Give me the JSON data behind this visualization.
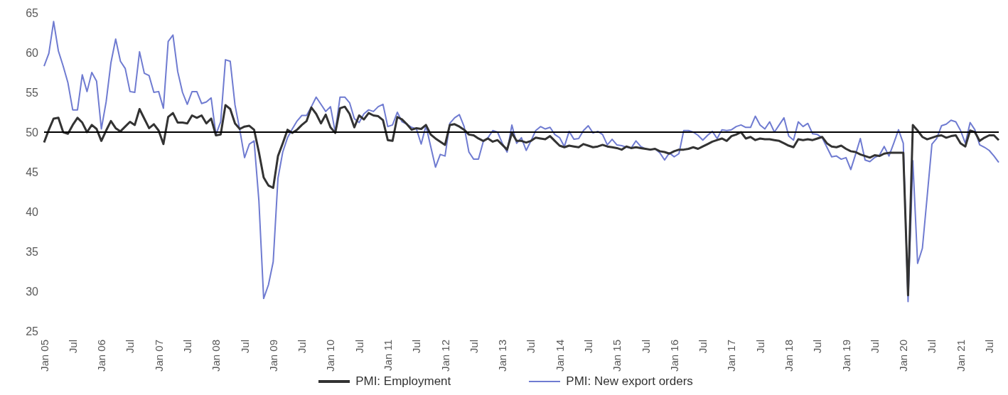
{
  "chart_data": {
    "type": "line",
    "categories": [
      "Jan 05",
      null,
      null,
      null,
      null,
      null,
      "Jul",
      null,
      null,
      null,
      null,
      null,
      "Jan 06",
      null,
      null,
      null,
      null,
      null,
      "Jul",
      null,
      null,
      null,
      null,
      null,
      "Jan 07",
      null,
      null,
      null,
      null,
      null,
      "Jul",
      null,
      null,
      null,
      null,
      null,
      "Jan 08",
      null,
      null,
      null,
      null,
      null,
      "Jul",
      null,
      null,
      null,
      null,
      null,
      "Jan 09",
      null,
      null,
      null,
      null,
      null,
      "Jul",
      null,
      null,
      null,
      null,
      null,
      "Jan 10",
      null,
      null,
      null,
      null,
      null,
      "Jul",
      null,
      null,
      null,
      null,
      null,
      "Jan 11",
      null,
      null,
      null,
      null,
      null,
      "Jul",
      null,
      null,
      null,
      null,
      null,
      "Jan 12",
      null,
      null,
      null,
      null,
      null,
      "Jul",
      null,
      null,
      null,
      null,
      null,
      "Jan 13",
      null,
      null,
      null,
      null,
      null,
      "Jul",
      null,
      null,
      null,
      null,
      null,
      "Jan 14",
      null,
      null,
      null,
      null,
      null,
      "Jul",
      null,
      null,
      null,
      null,
      null,
      "Jan 15",
      null,
      null,
      null,
      null,
      null,
      "Jul",
      null,
      null,
      null,
      null,
      null,
      "Jan 16",
      null,
      null,
      null,
      null,
      null,
      "Jul",
      null,
      null,
      null,
      null,
      null,
      "Jan 17",
      null,
      null,
      null,
      null,
      null,
      "Jul",
      null,
      null,
      null,
      null,
      null,
      "Jan 18",
      null,
      null,
      null,
      null,
      null,
      "Jul",
      null,
      null,
      null,
      null,
      null,
      "Jan 19",
      null,
      null,
      null,
      null,
      null,
      "Jul",
      null,
      null,
      null,
      null,
      null,
      "Jan 20",
      null,
      null,
      null,
      null,
      null,
      "Jul",
      null,
      null,
      null,
      null,
      null,
      "Jan 21",
      null,
      null,
      null,
      null,
      null,
      "Jul",
      null,
      null
    ],
    "series": [
      {
        "name": "PMI: Employment",
        "color": "#333333",
        "values": [
          48.7,
          50.3,
          51.7,
          51.8,
          50.0,
          49.8,
          50.9,
          51.8,
          51.2,
          50.0,
          50.9,
          50.4,
          48.9,
          50.2,
          51.4,
          50.5,
          50.1,
          50.7,
          51.3,
          50.9,
          52.9,
          51.7,
          50.5,
          51.0,
          50.2,
          48.5,
          51.9,
          52.4,
          51.2,
          51.2,
          51.1,
          52.1,
          51.8,
          52.1,
          51.1,
          51.7,
          49.6,
          49.7,
          53.4,
          52.9,
          51.1,
          50.4,
          50.7,
          50.8,
          50.3,
          47.5,
          44.3,
          43.3,
          43.0,
          47.0,
          48.6,
          50.3,
          49.9,
          50.3,
          50.9,
          51.4,
          53.1,
          52.3,
          51.1,
          52.2,
          50.6,
          49.9,
          53.0,
          53.2,
          52.3,
          50.6,
          52.1,
          51.6,
          52.4,
          52.1,
          52.0,
          51.5,
          49.0,
          48.9,
          51.9,
          51.6,
          51.0,
          50.3,
          50.5,
          50.4,
          50.9,
          49.7,
          49.2,
          48.8,
          48.4,
          50.9,
          51.0,
          50.7,
          50.3,
          49.7,
          49.6,
          49.2,
          48.9,
          49.2,
          48.8,
          49.0,
          48.4,
          47.8,
          49.9,
          48.9,
          48.9,
          48.7,
          48.9,
          49.3,
          49.2,
          49.1,
          49.5,
          48.9,
          48.3,
          48.1,
          48.3,
          48.2,
          48.1,
          48.5,
          48.3,
          48.1,
          48.2,
          48.4,
          48.2,
          48.1,
          48.0,
          47.8,
          48.2,
          48.0,
          48.1,
          48.0,
          47.9,
          47.8,
          47.9,
          47.6,
          47.5,
          47.3,
          47.6,
          47.8,
          47.8,
          47.9,
          48.1,
          47.9,
          48.2,
          48.5,
          48.8,
          49.0,
          49.2,
          48.9,
          49.5,
          49.7,
          50.0,
          49.2,
          49.4,
          49.0,
          49.2,
          49.1,
          49.1,
          49.0,
          48.9,
          48.6,
          48.3,
          48.1,
          49.1,
          49.0,
          49.1,
          49.0,
          49.2,
          49.4,
          48.6,
          48.2,
          48.1,
          48.3,
          47.9,
          47.6,
          47.5,
          47.2,
          47.0,
          46.8,
          47.1,
          47.0,
          47.3,
          47.4,
          47.4,
          47.4,
          47.4,
          29.5,
          50.9,
          50.2,
          49.4,
          49.1,
          49.3,
          49.5,
          49.6,
          49.3,
          49.5,
          49.6,
          48.6,
          48.2,
          50.2,
          50.0,
          48.9,
          49.3,
          49.6,
          49.6,
          49.0
        ]
      },
      {
        "name": "PMI: New export orders",
        "color": "#6f7bd1",
        "values": [
          58.3,
          59.9,
          63.9,
          60.2,
          58.3,
          56.2,
          52.8,
          52.8,
          57.2,
          55.1,
          57.5,
          56.4,
          50.4,
          53.8,
          58.7,
          61.7,
          58.9,
          58.0,
          55.1,
          55.0,
          60.1,
          57.4,
          57.1,
          55.0,
          55.1,
          53.0,
          61.4,
          62.2,
          57.6,
          55.0,
          53.5,
          55.1,
          55.1,
          53.6,
          53.8,
          54.3,
          49.7,
          51.3,
          59.1,
          58.9,
          53.4,
          50.3,
          46.8,
          48.5,
          48.9,
          41.4,
          29.1,
          30.8,
          33.7,
          44.2,
          47.5,
          49.3,
          50.4,
          51.4,
          52.1,
          52.1,
          53.2,
          54.4,
          53.5,
          52.6,
          53.2,
          50.0,
          54.4,
          54.4,
          53.7,
          51.7,
          51.2,
          52.3,
          52.8,
          52.6,
          53.2,
          53.5,
          50.7,
          50.9,
          52.5,
          51.3,
          51.0,
          50.6,
          50.4,
          48.5,
          50.8,
          48.2,
          45.6,
          47.2,
          47.0,
          51.1,
          51.8,
          52.2,
          50.7,
          47.5,
          46.6,
          46.6,
          48.8,
          49.3,
          50.2,
          50.0,
          48.6,
          47.5,
          50.9,
          48.6,
          49.3,
          47.7,
          48.9,
          50.2,
          50.7,
          50.4,
          50.6,
          49.7,
          49.3,
          48.2,
          50.1,
          49.1,
          49.2,
          50.2,
          50.8,
          49.9,
          50.1,
          49.7,
          48.4,
          49.1,
          48.4,
          48.3,
          48.1,
          48.0,
          48.9,
          48.2,
          47.9,
          47.8,
          47.9,
          47.4,
          46.5,
          47.4,
          46.9,
          47.3,
          50.2,
          50.2,
          50.0,
          49.6,
          49.0,
          49.6,
          50.1,
          49.2,
          50.3,
          50.2,
          50.3,
          50.7,
          50.9,
          50.6,
          50.6,
          52.0,
          50.9,
          50.4,
          51.3,
          50.0,
          50.9,
          51.8,
          49.5,
          49.0,
          51.3,
          50.7,
          51.1,
          49.8,
          49.7,
          49.3,
          48.1,
          46.9,
          47.0,
          46.6,
          46.8,
          45.3,
          47.2,
          49.2,
          46.5,
          46.3,
          46.8,
          47.1,
          48.2,
          47.0,
          48.6,
          50.3,
          48.6,
          28.7,
          46.4,
          33.5,
          35.4,
          41.9,
          48.5,
          49.2,
          50.8,
          51.0,
          51.5,
          51.3,
          50.2,
          48.6,
          51.2,
          50.3,
          48.4,
          48.1,
          47.7,
          47.0,
          46.2
        ]
      }
    ],
    "ylim": [
      25,
      65
    ],
    "yticks": [
      25,
      30,
      35,
      40,
      45,
      50,
      55,
      60,
      65
    ],
    "ref_lines": [
      {
        "axis": "y",
        "value": 50,
        "color": "#000000"
      }
    ],
    "grid": false,
    "legend": "bottom"
  }
}
